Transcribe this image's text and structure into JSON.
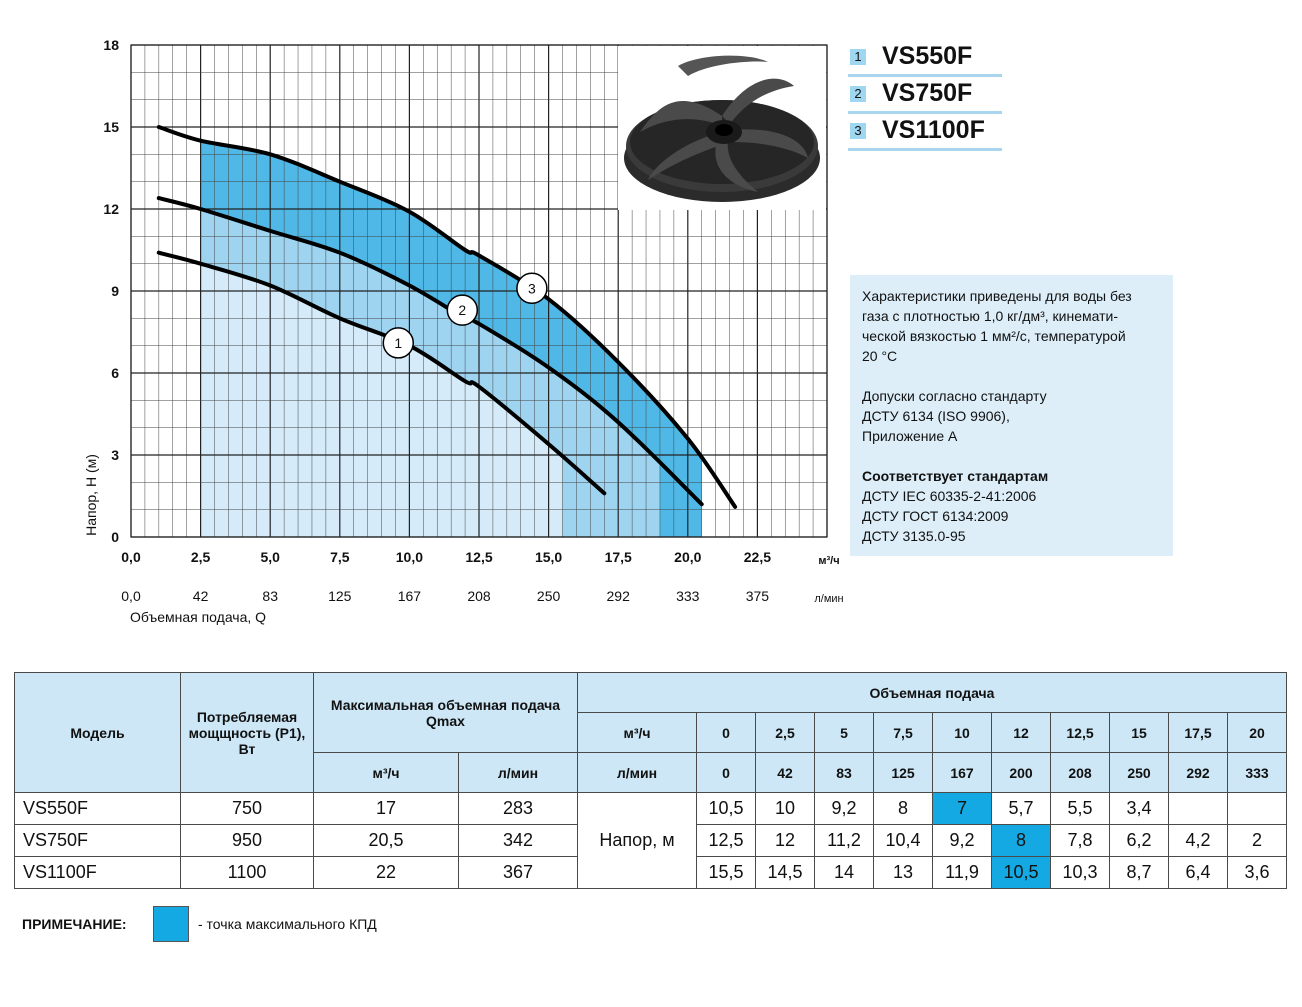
{
  "chart_data": {
    "type": "line",
    "xlabel": "Объемная подача, Q",
    "ylabel": "Напор, H (м)",
    "x_unit": "м³/ч",
    "x2_unit": "л/мин",
    "xlim": [
      0,
      25
    ],
    "ylim": [
      0,
      18
    ],
    "x_ticks": [
      "0,0",
      "2,5",
      "5,0",
      "7,5",
      "10,0",
      "12,5",
      "15,0",
      "17,5",
      "20,0",
      "22,5"
    ],
    "x2_ticks": [
      "0,0",
      "42",
      "83",
      "125",
      "167",
      "208",
      "250",
      "292",
      "333",
      "375"
    ],
    "y_ticks": [
      "0",
      "3",
      "6",
      "9",
      "12",
      "15",
      "18"
    ],
    "grid": true,
    "series": [
      {
        "name": "1",
        "x": [
          1.0,
          2.5,
          5.0,
          7.5,
          10.0,
          12.0,
          12.5,
          15.0,
          17.0
        ],
        "y": [
          10.4,
          10.0,
          9.2,
          8.0,
          7.0,
          5.7,
          5.5,
          3.4,
          1.6
        ]
      },
      {
        "name": "2",
        "x": [
          1.0,
          2.5,
          5.0,
          7.5,
          10.0,
          12.0,
          12.5,
          15.0,
          17.5,
          20.5
        ],
        "y": [
          12.4,
          12.0,
          11.2,
          10.4,
          9.2,
          8.0,
          7.8,
          6.2,
          4.2,
          1.2
        ]
      },
      {
        "name": "3",
        "x": [
          1.0,
          2.5,
          5.0,
          7.5,
          10.0,
          12.0,
          12.5,
          15.0,
          17.5,
          20.0,
          21.7
        ],
        "y": [
          15.0,
          14.5,
          14.0,
          13.0,
          11.9,
          10.5,
          10.3,
          8.7,
          6.4,
          3.6,
          1.1
        ]
      }
    ],
    "efficiency_bands": [
      {
        "series": "1",
        "x_from": 2.5,
        "x_to": 15.5
      },
      {
        "series": "2",
        "x_from": 2.5,
        "x_to": 19.0
      },
      {
        "series": "3",
        "x_from": 2.5,
        "x_to": 20.5
      }
    ],
    "curve_labels": [
      {
        "label": "1",
        "x": 9.6,
        "y": 7.1
      },
      {
        "label": "2",
        "x": 11.9,
        "y": 8.3
      },
      {
        "label": "3",
        "x": 14.4,
        "y": 9.1
      }
    ]
  },
  "colors": {
    "band_1": "#d5ebf9",
    "band_2": "#9fd4f1",
    "band_3": "#4fb8e6",
    "highlight": "#15a9e3",
    "header_bg": "#cde7f6",
    "info_bg": "#ddeef9"
  },
  "legend": [
    {
      "num": "1",
      "name": "VS550F"
    },
    {
      "num": "2",
      "name": "VS750F"
    },
    {
      "num": "3",
      "name": "VS1100F"
    }
  ],
  "image": {
    "icon": "impeller-image"
  },
  "info": {
    "p1_l1": "Характеристики приведены для воды без",
    "p1_l2": "газа с плотностью 1,0 кг/дм³, кинемати-",
    "p1_l3": "ческой вязкостью 1 мм²/с, температурой",
    "p1_l4": "20 °С",
    "p2_l1": "Допуски согласно стандарту",
    "p2_l2": "ДСТУ 6134 (ISO 9906),",
    "p2_l3": "Приложение А",
    "p3_title": "Соответствует стандартам",
    "p3_l1": "ДСТУ IEC 60335-2-41:2006",
    "p3_l2": "ДСТУ ГОСТ 6134:2009",
    "p3_l3": "ДСТУ 3135.0-95"
  },
  "table": {
    "h_model": "Модель",
    "h_power": "Потребляемая мощщность (P1), Вт",
    "h_qmax": "Максимальная объемная подача Qmax",
    "h_flow": "Объемная подача",
    "u_m3h": "м³/ч",
    "u_lmin": "л/мин",
    "flow_m3h": [
      "0",
      "2,5",
      "5",
      "7,5",
      "10",
      "12",
      "12,5",
      "15",
      "17,5",
      "20"
    ],
    "flow_lmin": [
      "0",
      "42",
      "83",
      "125",
      "167",
      "200",
      "208",
      "250",
      "292",
      "333"
    ],
    "head_label": "Напор, м",
    "rows": [
      {
        "model": "VS550F",
        "power": "750",
        "q_m3h": "17",
        "q_lmin": "283",
        "heads": [
          "10,5",
          "10",
          "9,2",
          "8",
          "7",
          "5,7",
          "5,5",
          "3,4",
          "",
          ""
        ],
        "best": 4
      },
      {
        "model": "VS750F",
        "power": "950",
        "q_m3h": "20,5",
        "q_lmin": "342",
        "heads": [
          "12,5",
          "12",
          "11,2",
          "10,4",
          "9,2",
          "8",
          "7,8",
          "6,2",
          "4,2",
          "2"
        ],
        "best": 5
      },
      {
        "model": "VS1100F",
        "power": "1100",
        "q_m3h": "22",
        "q_lmin": "367",
        "heads": [
          "15,5",
          "14,5",
          "14",
          "13",
          "11,9",
          "10,5",
          "10,3",
          "8,7",
          "6,4",
          "3,6"
        ],
        "best": 5
      }
    ]
  },
  "note": {
    "label": "ПРИМЕЧАНИЕ:",
    "text": "- точка максимального КПД"
  }
}
